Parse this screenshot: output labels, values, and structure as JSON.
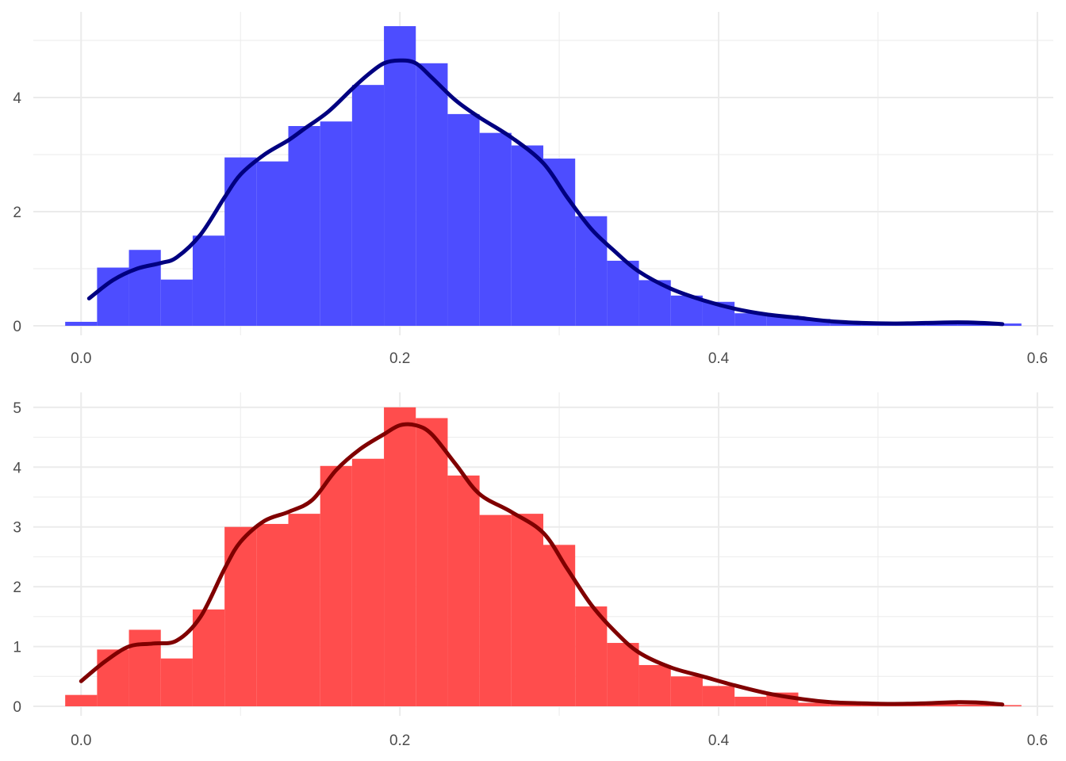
{
  "chart_data": [
    {
      "type": "histogram",
      "panel": "top",
      "bar_color": "#4d4dff",
      "density_color": "#000080",
      "xlim": [
        -0.03,
        0.61
      ],
      "ylim": [
        0,
        5.5
      ],
      "x_ticks": [
        "0.0",
        "0.2",
        "0.4",
        "0.6"
      ],
      "x_tick_values": [
        0.0,
        0.2,
        0.4,
        0.6
      ],
      "y_ticks": [
        "0",
        "2",
        "4"
      ],
      "y_tick_values": [
        0,
        2,
        4
      ],
      "bin_width": 0.02,
      "bin_starts": [
        -0.01,
        0.01,
        0.03,
        0.05,
        0.07,
        0.09,
        0.11,
        0.13,
        0.15,
        0.17,
        0.19,
        0.21,
        0.23,
        0.25,
        0.27,
        0.29,
        0.31,
        0.33,
        0.35,
        0.37,
        0.39,
        0.41,
        0.43,
        0.45,
        0.47,
        0.49,
        0.51,
        0.53,
        0.55,
        0.57
      ],
      "values": [
        0.07,
        1.02,
        1.33,
        0.81,
        1.58,
        2.95,
        2.88,
        3.5,
        3.58,
        4.22,
        5.25,
        4.6,
        3.71,
        3.38,
        3.16,
        2.93,
        1.92,
        1.14,
        0.8,
        0.53,
        0.42,
        0.22,
        0.18,
        0.12,
        0.08,
        0.05,
        0.04,
        0.06,
        0.05,
        0.04
      ],
      "density_x": [
        0.005,
        0.02,
        0.035,
        0.05,
        0.06,
        0.075,
        0.09,
        0.1,
        0.115,
        0.13,
        0.14,
        0.155,
        0.17,
        0.18,
        0.19,
        0.2,
        0.21,
        0.22,
        0.235,
        0.25,
        0.27,
        0.29,
        0.305,
        0.32,
        0.335,
        0.35,
        0.37,
        0.39,
        0.41,
        0.43,
        0.45,
        0.47,
        0.49,
        0.51,
        0.53,
        0.55,
        0.565,
        0.578
      ],
      "density_y": [
        0.48,
        0.8,
        1.0,
        1.1,
        1.2,
        1.6,
        2.25,
        2.65,
        3.0,
        3.25,
        3.45,
        3.75,
        4.15,
        4.4,
        4.6,
        4.65,
        4.6,
        4.35,
        3.95,
        3.65,
        3.3,
        2.85,
        2.25,
        1.7,
        1.3,
        0.95,
        0.65,
        0.45,
        0.3,
        0.2,
        0.14,
        0.08,
        0.05,
        0.04,
        0.05,
        0.06,
        0.05,
        0.03
      ]
    },
    {
      "type": "histogram",
      "panel": "bottom",
      "bar_color": "#ff4d4d",
      "density_color": "#800000",
      "xlim": [
        -0.03,
        0.61
      ],
      "ylim": [
        0,
        5.25
      ],
      "x_ticks": [
        "0.0",
        "0.2",
        "0.4",
        "0.6"
      ],
      "x_tick_values": [
        0.0,
        0.2,
        0.4,
        0.6
      ],
      "y_ticks": [
        "0",
        "1",
        "2",
        "3",
        "4",
        "5"
      ],
      "y_tick_values": [
        0,
        1,
        2,
        3,
        4,
        5
      ],
      "bin_width": 0.02,
      "bin_starts": [
        -0.01,
        0.01,
        0.03,
        0.05,
        0.07,
        0.09,
        0.11,
        0.13,
        0.15,
        0.17,
        0.19,
        0.21,
        0.23,
        0.25,
        0.27,
        0.29,
        0.31,
        0.33,
        0.35,
        0.37,
        0.39,
        0.41,
        0.43,
        0.45,
        0.47,
        0.49,
        0.51,
        0.53,
        0.55,
        0.57
      ],
      "values": [
        0.19,
        0.95,
        1.28,
        0.8,
        1.62,
        3.0,
        3.05,
        3.22,
        4.02,
        4.14,
        5.0,
        4.82,
        3.86,
        3.2,
        3.22,
        2.7,
        1.67,
        1.06,
        0.69,
        0.5,
        0.34,
        0.16,
        0.23,
        0.06,
        0.05,
        0.04,
        0.03,
        0.04,
        0.03,
        0.02
      ],
      "density_x": [
        0.0,
        0.015,
        0.03,
        0.045,
        0.06,
        0.075,
        0.09,
        0.1,
        0.115,
        0.13,
        0.145,
        0.16,
        0.175,
        0.19,
        0.2,
        0.21,
        0.22,
        0.235,
        0.25,
        0.27,
        0.29,
        0.305,
        0.32,
        0.335,
        0.35,
        0.37,
        0.39,
        0.41,
        0.43,
        0.45,
        0.47,
        0.49,
        0.51,
        0.53,
        0.55,
        0.565,
        0.578
      ],
      "density_y": [
        0.42,
        0.75,
        1.0,
        1.05,
        1.1,
        1.5,
        2.3,
        2.75,
        3.1,
        3.25,
        3.45,
        3.95,
        4.3,
        4.55,
        4.7,
        4.7,
        4.55,
        4.05,
        3.55,
        3.25,
        2.9,
        2.3,
        1.7,
        1.25,
        0.9,
        0.65,
        0.5,
        0.35,
        0.22,
        0.13,
        0.07,
        0.05,
        0.04,
        0.05,
        0.07,
        0.06,
        0.03
      ]
    }
  ]
}
